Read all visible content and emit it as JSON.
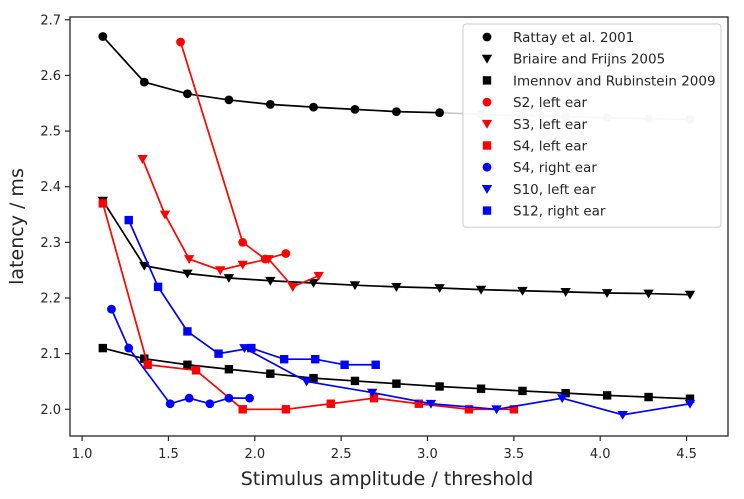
{
  "chart_data": {
    "type": "scatter",
    "title": "",
    "xlabel": "Stimulus amplitude / threshold",
    "ylabel": "latency / ms",
    "xlim": [
      0.93,
      4.74
    ],
    "ylim": [
      1.952,
      2.705
    ],
    "xticks": [
      "1.0",
      "1.5",
      "2.0",
      "2.5",
      "3.0",
      "3.5",
      "4.0",
      "4.5"
    ],
    "yticks": [
      "2.0",
      "2.1",
      "2.2",
      "2.3",
      "2.4",
      "2.5",
      "2.6",
      "2.7"
    ],
    "legend_position": "top-right",
    "grid": false,
    "series": [
      {
        "name": "Rattay et al. 2001",
        "color": "#000000",
        "marker": "circle",
        "x": [
          1.12,
          1.36,
          1.61,
          1.85,
          2.09,
          2.34,
          2.58,
          2.82,
          3.07,
          3.31,
          3.55,
          3.8,
          4.04,
          4.28,
          4.52
        ],
        "y": [
          2.67,
          2.588,
          2.567,
          2.556,
          2.548,
          2.543,
          2.539,
          2.535,
          2.533,
          2.53,
          2.528,
          2.526,
          2.524,
          2.522,
          2.521
        ],
        "grey_from_index": 9
      },
      {
        "name": "Briaire and Frijns 2005",
        "color": "#000000",
        "marker": "triangle-down",
        "x": [
          1.12,
          1.36,
          1.61,
          1.85,
          2.09,
          2.34,
          2.58,
          2.82,
          3.07,
          3.31,
          3.55,
          3.8,
          4.04,
          4.28,
          4.52
        ],
        "y": [
          2.375,
          2.258,
          2.244,
          2.236,
          2.231,
          2.227,
          2.223,
          2.22,
          2.218,
          2.215,
          2.213,
          2.211,
          2.209,
          2.208,
          2.206
        ]
      },
      {
        "name": "Imennov and Rubinstein 2009",
        "color": "#000000",
        "marker": "square",
        "x": [
          1.12,
          1.36,
          1.61,
          1.85,
          2.09,
          2.34,
          2.58,
          2.82,
          3.07,
          3.31,
          3.55,
          3.8,
          4.04,
          4.28,
          4.52
        ],
        "y": [
          2.11,
          2.091,
          2.08,
          2.072,
          2.064,
          2.056,
          2.051,
          2.046,
          2.041,
          2.037,
          2.033,
          2.029,
          2.025,
          2.022,
          2.019
        ]
      },
      {
        "name": "S2, left ear",
        "color": "#ff0000",
        "marker": "circle",
        "x": [
          1.57,
          1.93,
          2.06,
          2.18
        ],
        "y": [
          2.66,
          2.3,
          2.27,
          2.28
        ]
      },
      {
        "name": "S3, left ear",
        "color": "#ff0000",
        "marker": "triangle-down",
        "x": [
          1.35,
          1.48,
          1.62,
          1.8,
          1.93,
          2.08,
          2.22,
          2.37
        ],
        "y": [
          2.45,
          2.35,
          2.27,
          2.25,
          2.26,
          2.27,
          2.22,
          2.24
        ]
      },
      {
        "name": "S4, left ear",
        "color": "#ff0000",
        "marker": "square",
        "x": [
          1.12,
          1.38,
          1.66,
          1.93,
          2.18,
          2.44,
          2.69,
          2.95,
          3.24,
          3.5
        ],
        "y": [
          2.37,
          2.08,
          2.07,
          2.0,
          2.0,
          2.01,
          2.02,
          2.01,
          2.0,
          2.0
        ]
      },
      {
        "name": "S4, right ear",
        "color": "#0000ff",
        "marker": "circle",
        "x": [
          1.17,
          1.27,
          1.51,
          1.62,
          1.74,
          1.85,
          1.97
        ],
        "y": [
          2.18,
          2.11,
          2.01,
          2.02,
          2.01,
          2.02,
          2.02
        ]
      },
      {
        "name": "S10, left ear",
        "color": "#0000ff",
        "marker": "triangle-down",
        "x": [
          1.94,
          2.3,
          2.68,
          3.02,
          3.4,
          3.78,
          4.13,
          4.52
        ],
        "y": [
          2.11,
          2.05,
          2.03,
          2.01,
          2.0,
          2.02,
          1.99,
          2.01
        ]
      },
      {
        "name": "S12, right ear",
        "color": "#0000ff",
        "marker": "square",
        "x": [
          1.27,
          1.44,
          1.61,
          1.79,
          1.98,
          2.17,
          2.35,
          2.52,
          2.7
        ],
        "y": [
          2.34,
          2.22,
          2.14,
          2.1,
          2.11,
          2.09,
          2.09,
          2.08,
          2.08
        ]
      }
    ]
  }
}
